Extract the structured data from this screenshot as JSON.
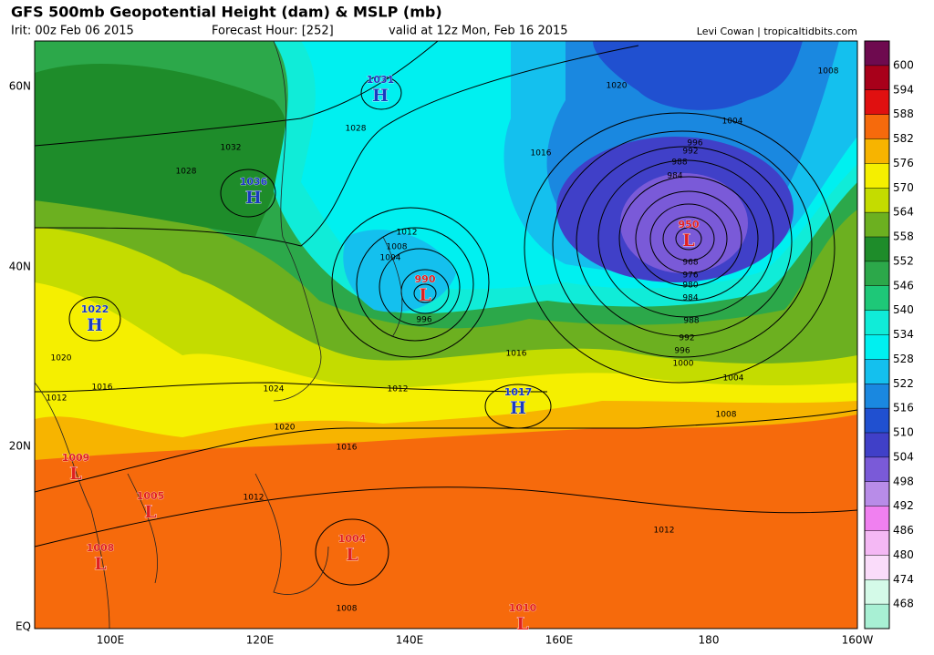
{
  "header": {
    "title": "GFS 500mb Geopotential Height (dam) & MSLP (mb)",
    "init": "Irit: 00z Feb 06 2015",
    "forecast_hour": "Forecast Hour: [252]",
    "valid": "valid at 12z Mon, Feb 16 2015",
    "credit": "Levi Cowan | tropicaltidbits.com"
  },
  "axes": {
    "lat_labels": [
      "60N",
      "40N",
      "20N",
      "EQ"
    ],
    "lon_labels": [
      "100E",
      "120E",
      "140E",
      "160E",
      "180",
      "160W"
    ]
  },
  "colorbar": {
    "ticks": [
      600,
      594,
      588,
      582,
      576,
      570,
      564,
      558,
      552,
      546,
      540,
      534,
      528,
      522,
      516,
      510,
      504,
      498,
      492,
      486,
      480,
      474,
      468
    ],
    "colors": [
      "#6e0a4f",
      "#a8001a",
      "#e01010",
      "#f66a0c",
      "#f7b400",
      "#f5ef00",
      "#c4dc00",
      "#6cb020",
      "#1e8c2a",
      "#2ca84a",
      "#1ec878",
      "#10ecd8",
      "#00f0f0",
      "#14c0ee",
      "#1a88e0",
      "#2050d0",
      "#4040c8",
      "#7a5ad8",
      "#b88ce8",
      "#f080f0",
      "#f4b8f4",
      "#fadcfa",
      "#d4fae8",
      "#a8f0d4"
    ]
  },
  "centers": [
    {
      "value": 1031,
      "letter": "H"
    },
    {
      "value": 1036,
      "letter": "H"
    },
    {
      "value": 1022,
      "letter": "H"
    },
    {
      "value": 1017,
      "letter": "H"
    },
    {
      "value": 950,
      "letter": "L"
    },
    {
      "value": 990,
      "letter": "L"
    },
    {
      "value": 1009,
      "letter": "L"
    },
    {
      "value": 1005,
      "letter": "L"
    },
    {
      "value": 1008,
      "letter": "L"
    },
    {
      "value": 1004,
      "letter": "L"
    },
    {
      "value": 1010,
      "letter": "L"
    }
  ],
  "isobar_labels": [
    1032,
    1028,
    1028,
    1020,
    1008,
    1004,
    1016,
    996,
    992,
    988,
    984,
    968,
    976,
    980,
    984,
    988,
    992,
    996,
    1000,
    1004,
    1008,
    1012,
    1016,
    1024,
    1020,
    1016,
    1012,
    1012,
    1008,
    1020,
    1016,
    1012,
    1012,
    1008,
    1004,
    996
  ]
}
